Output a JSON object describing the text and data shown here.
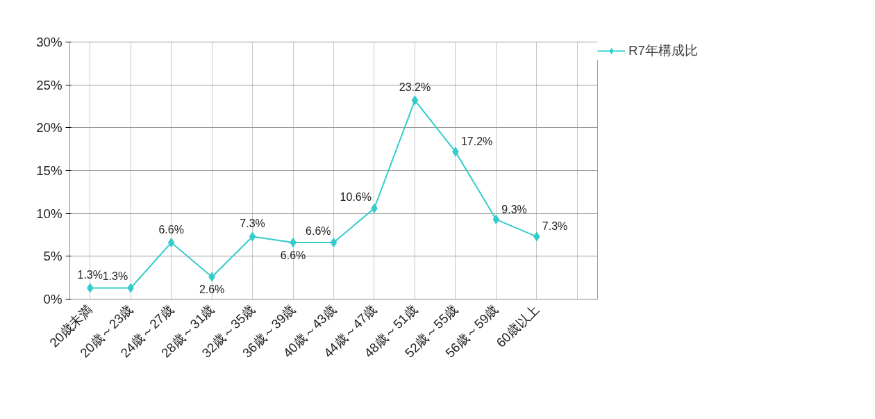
{
  "chart_data": {
    "type": "line",
    "categories": [
      "20歳未満",
      "20歳～23歳",
      "24歳～27歳",
      "28歳～31歳",
      "32歳～35歳",
      "36歳～39歳",
      "40歳～43歳",
      "44歳～47歳",
      "48歳～51歳",
      "52歳～55歳",
      "56歳～59歳",
      "60歳以上",
      null
    ],
    "series": [
      {
        "name": "R7年構成比",
        "color": "#33cccc",
        "values": [
          1.3,
          1.3,
          6.6,
          2.6,
          7.3,
          6.6,
          6.6,
          10.6,
          23.2,
          17.2,
          9.3,
          7.3,
          null
        ],
        "value_labels": [
          "1.3%",
          "1.3%",
          "6.6%",
          "2.6%",
          "7.3%",
          "6.6%",
          "6.6%",
          "10.6%",
          "23.2%",
          "17.2%",
          "9.3%",
          "7.3%",
          null
        ]
      }
    ],
    "ylim": [
      0,
      30
    ],
    "yticks": [
      {
        "value": 0,
        "label": "0%"
      },
      {
        "value": 5,
        "label": "5%"
      },
      {
        "value": 10,
        "label": "10%"
      },
      {
        "value": 15,
        "label": "15%"
      },
      {
        "value": 20,
        "label": "20%"
      },
      {
        "value": 25,
        "label": "25%"
      },
      {
        "value": 30,
        "label": "30%"
      }
    ],
    "grid": true,
    "legend": "right",
    "marker": "diamond",
    "line_style": "solid"
  }
}
